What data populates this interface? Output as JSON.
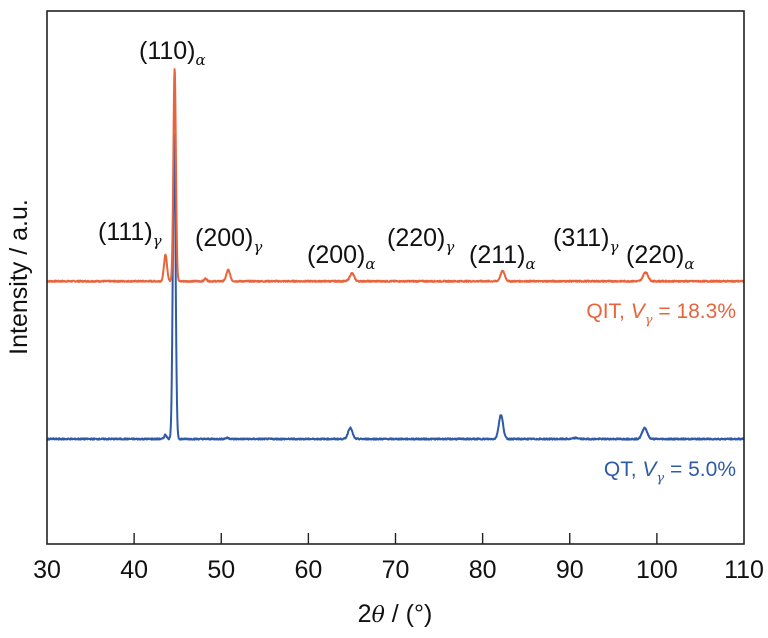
{
  "chart_data": {
    "type": "line",
    "title": "",
    "xlabel": "2θ / (°)",
    "xlabel_parts": {
      "prefix": "2",
      "theta": "θ",
      "suffix": " / (°)"
    },
    "ylabel": "Intensity / a.u.",
    "xlim": [
      30,
      110
    ],
    "ylim": [
      0,
      100
    ],
    "xticks": [
      30,
      40,
      50,
      60,
      70,
      80,
      90,
      100,
      110
    ],
    "yticks_shown": false,
    "grid": false,
    "colors": {
      "QIT": "#e8643c",
      "QT": "#2f5aa8",
      "axis": "#222222"
    },
    "series": [
      {
        "name": "QIT",
        "label": {
          "main": "QIT, ",
          "v": "V",
          "sub": "γ",
          "rest": " = 18.3%"
        },
        "baseline": 49.3,
        "peaks": [
          {
            "x": 43.6,
            "y": 54.2,
            "w": 0.25
          },
          {
            "x": 44.65,
            "y": 89.3,
            "w": 0.2
          },
          {
            "x": 48.2,
            "y": 49.8,
            "w": 0.2
          },
          {
            "x": 50.8,
            "y": 51.4,
            "w": 0.3
          },
          {
            "x": 65.0,
            "y": 50.8,
            "w": 0.35
          },
          {
            "x": 82.3,
            "y": 51.2,
            "w": 0.35
          },
          {
            "x": 98.7,
            "y": 51.0,
            "w": 0.4
          }
        ]
      },
      {
        "name": "QT",
        "label": {
          "main": "QT, ",
          "v": "V",
          "sub": "γ",
          "rest": " = 5.0%"
        },
        "baseline": 19.7,
        "peaks": [
          {
            "x": 43.6,
            "y": 20.5,
            "w": 0.2
          },
          {
            "x": 44.6,
            "y": 76.7,
            "w": 0.22
          },
          {
            "x": 50.7,
            "y": 19.9,
            "w": 0.3
          },
          {
            "x": 64.8,
            "y": 21.8,
            "w": 0.35
          },
          {
            "x": 82.1,
            "y": 24.2,
            "w": 0.35
          },
          {
            "x": 90.7,
            "y": 19.9,
            "w": 0.4
          },
          {
            "x": 98.6,
            "y": 21.8,
            "w": 0.4
          }
        ]
      }
    ],
    "annotations": [
      {
        "hkl": "(110)",
        "phase": "α"
      },
      {
        "hkl": "(111)",
        "phase": "γ"
      },
      {
        "hkl": "(200)",
        "phase": "γ"
      },
      {
        "hkl": "(200)",
        "phase": "α"
      },
      {
        "hkl": "(220)",
        "phase": "γ"
      },
      {
        "hkl": "(211)",
        "phase": "α"
      },
      {
        "hkl": "(311)",
        "phase": "γ"
      },
      {
        "hkl": "(220)",
        "phase": "α"
      }
    ]
  }
}
